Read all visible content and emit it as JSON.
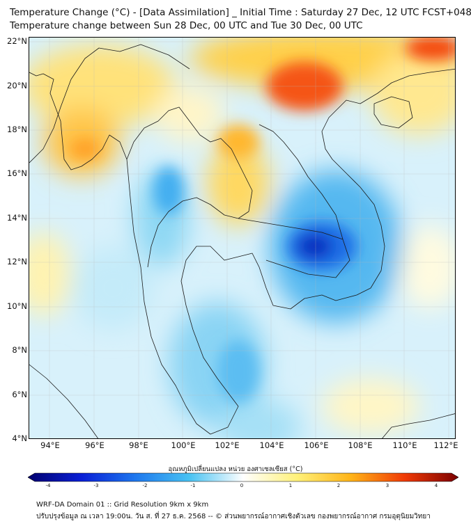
{
  "header": {
    "title_line1": "Temperature Change (°C) - [Data Assimilation] _ Initial Time : Saturday 27 Dec, 12 UTC FCST+048",
    "title_line2": "Temperature change between Sun 28 Dec, 00 UTC and Tue 30 Dec, 00 UTC"
  },
  "map": {
    "lat_ticks": [
      "22°N",
      "20°N",
      "18°N",
      "16°N",
      "14°N",
      "12°N",
      "10°N",
      "8°N",
      "6°N",
      "4°N"
    ],
    "lon_ticks": [
      "94°E",
      "96°E",
      "98°E",
      "100°E",
      "102°E",
      "104°E",
      "106°E",
      "108°E",
      "110°E",
      "112°E"
    ],
    "extent": {
      "lon_min": 93.1,
      "lon_max": 112.4,
      "lat_min": 4.0,
      "lat_max": 22.2
    },
    "warm_areas": [
      "northern Myanmar",
      "southern China / Gulf of Tonkin",
      "Laos (Vientiane)",
      "Hainan"
    ],
    "cold_areas": [
      "Cambodia (Tonle Sap)",
      "central Thailand",
      "southern Vietnam",
      "Gulf of Thailand"
    ]
  },
  "colorbar": {
    "label": "อุณหภูมิเปลี่ยนแปลง หน่วย องศาเซลเซียส (°C)",
    "ticks": [
      "-4",
      "-3",
      "-2",
      "-1",
      "0",
      "1",
      "2",
      "3",
      "4"
    ],
    "min": -4,
    "max": 4,
    "colors": [
      "#00006e",
      "#0a1fd6",
      "#1e78ee",
      "#48c2f2",
      "#ffffff",
      "#fff17a",
      "#ffb418",
      "#f03a06",
      "#7a0000"
    ]
  },
  "footer": {
    "line1": "WRF-DA Domain 01 :: Grid Resolution 9km x 9km",
    "line2": "ปรับปรุงข้อมูล ณ เวลา 19:00น. วัน ส. ที่ 27 ธ.ค. 2568 -- © ส่วนพยากรณ์อากาศเชิงตัวเลข กองพยากรณ์อากาศ กรมอุตุนิยมวิทยา"
  }
}
